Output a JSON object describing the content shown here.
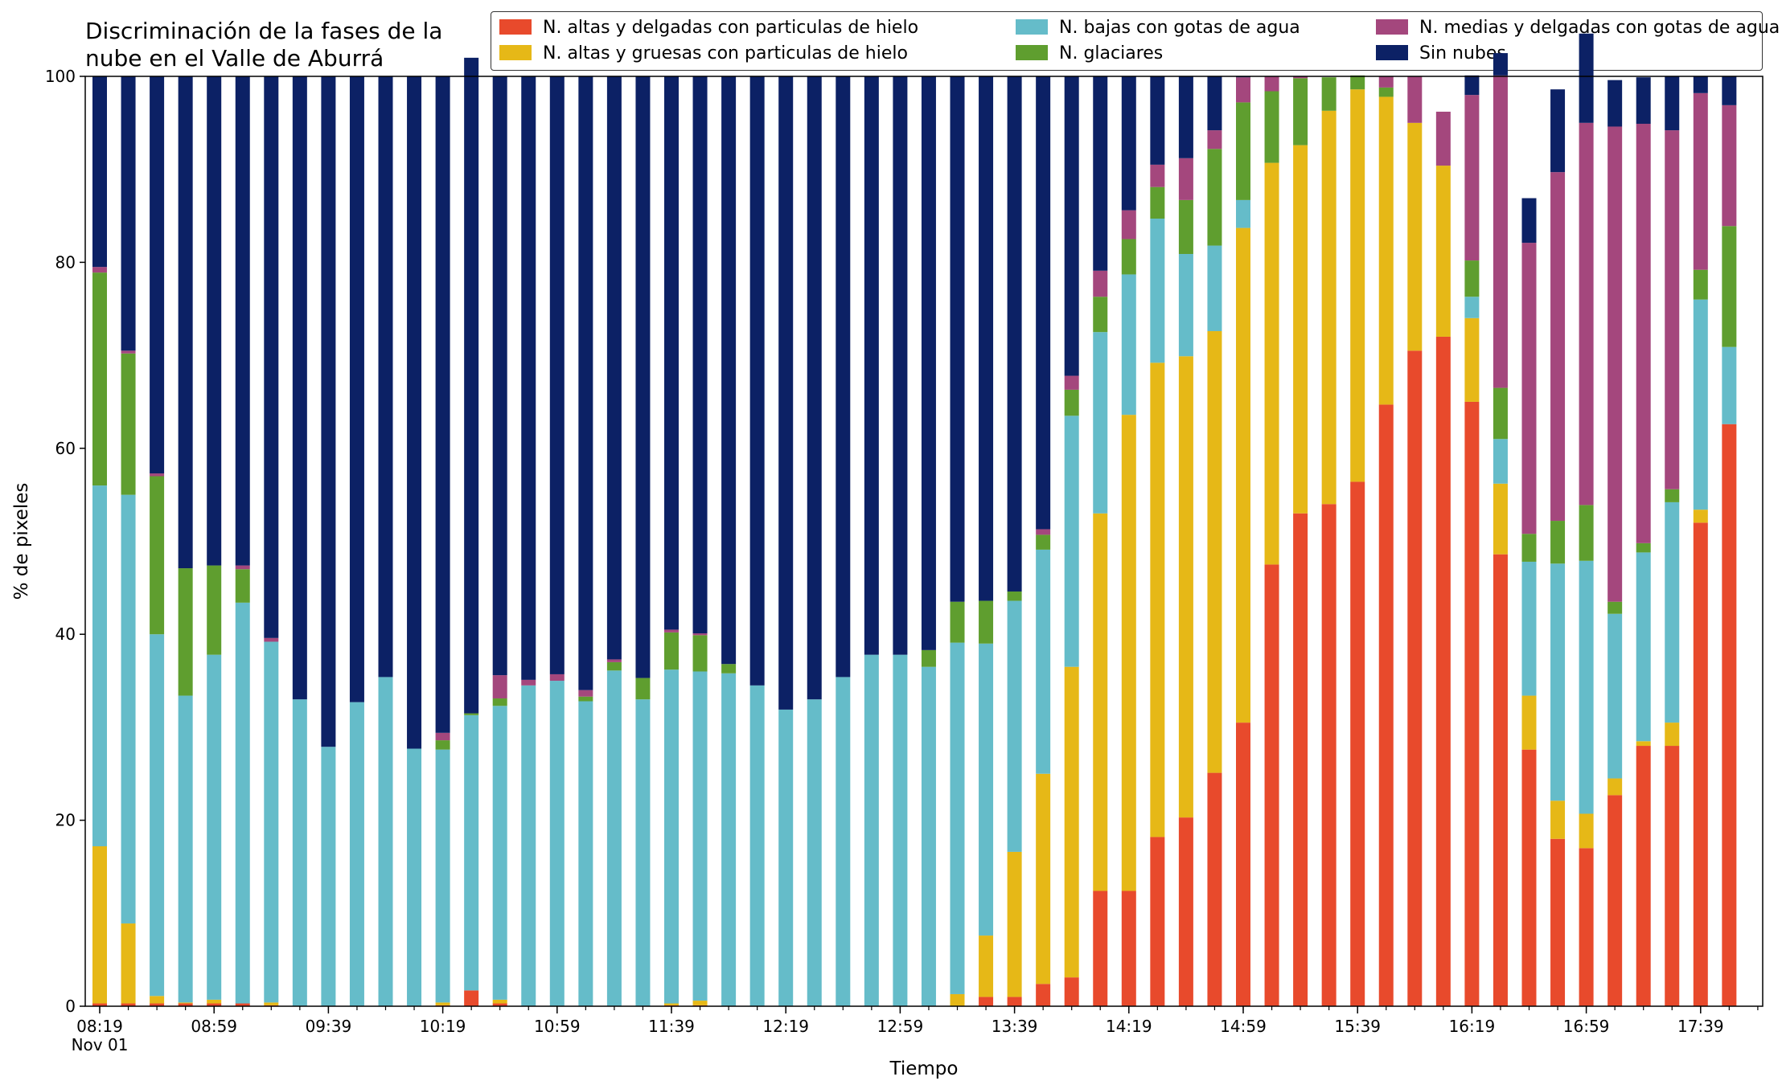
{
  "chart_data": {
    "type": "bar",
    "stacked": true,
    "title": "Discriminación de la fases de la\nnube en el Valle de Aburrá",
    "xlabel": "Tiempo",
    "ylabel": "% de pixeles",
    "ylim": [
      0,
      100
    ],
    "yticks": [
      0,
      20,
      40,
      60,
      80,
      100
    ],
    "xtick_labels": [
      "08:19",
      "08:59",
      "09:39",
      "10:19",
      "10:59",
      "11:39",
      "12:19",
      "12:59",
      "13:39",
      "14:19",
      "14:59",
      "15:39",
      "16:19",
      "16:59",
      "17:39"
    ],
    "xtick_sublabel": "Nov 01",
    "legend_position": "top-right",
    "categories": [
      "08:19",
      "08:29",
      "08:39",
      "08:49",
      "08:59",
      "09:09",
      "09:19",
      "09:29",
      "09:39",
      "09:49",
      "09:59",
      "10:09",
      "10:19",
      "10:29",
      "10:39",
      "10:49",
      "10:59",
      "11:09",
      "11:19",
      "11:29",
      "11:39",
      "11:49",
      "11:59",
      "12:09",
      "12:19",
      "12:29",
      "12:39",
      "12:49",
      "12:59",
      "13:09",
      "13:19",
      "13:29",
      "13:39",
      "13:49",
      "13:59",
      "14:09",
      "14:19",
      "14:29",
      "14:39",
      "14:49",
      "14:59",
      "15:09",
      "15:19",
      "15:29",
      "15:39",
      "15:49",
      "15:59",
      "16:09",
      "16:19",
      "16:29",
      "16:39",
      "16:49",
      "16:59",
      "17:09",
      "17:19",
      "17:29",
      "17:39",
      "17:49"
    ],
    "series": [
      {
        "name": "N. altas y delgadas con particulas de hielo",
        "color": "#e84a2c",
        "values": [
          0.3,
          0.3,
          0.3,
          0.3,
          0.3,
          0.3,
          0.1,
          0,
          0,
          0,
          0,
          0,
          0.1,
          1.7,
          0.3,
          0,
          0,
          0,
          0,
          0,
          0.1,
          0.1,
          0,
          0,
          0,
          0,
          0,
          0,
          0,
          0,
          0,
          1.0,
          1.0,
          2.4,
          3.1,
          12.4,
          12.4,
          18.2,
          20.3,
          25.1,
          30.5,
          47.5,
          53.0,
          54.0,
          56.4,
          64.7,
          70.5,
          72.0,
          65.0,
          48.6,
          27.6,
          18.0,
          17.0,
          22.7,
          28.0,
          28.0,
          52.0,
          62.6
        ]
      },
      {
        "name": "N. altas y gruesas con particulas de hielo",
        "color": "#e6b817",
        "values": [
          16.9,
          8.6,
          0.8,
          0.1,
          0.4,
          0,
          0.3,
          0,
          0,
          0,
          0,
          0,
          0.3,
          0,
          0.4,
          0,
          0,
          0,
          0,
          0,
          0.2,
          0.5,
          0,
          0,
          0,
          0,
          0,
          0,
          0,
          0,
          1.3,
          6.6,
          15.6,
          22.6,
          33.4,
          40.6,
          51.2,
          51.0,
          49.6,
          47.5,
          53.2,
          43.2,
          39.6,
          42.3,
          42.2,
          33.1,
          24.5,
          18.4,
          9.0,
          7.6,
          5.8,
          4.1,
          3.7,
          1.8,
          0.5,
          2.5,
          1.4,
          0
        ]
      },
      {
        "name": "N. bajas con gotas de agua",
        "color": "#65bcc9",
        "values": [
          38.8,
          46.1,
          38.9,
          33.0,
          37.1,
          43.1,
          38.8,
          33.0,
          27.9,
          32.7,
          35.4,
          27.7,
          27.2,
          29.6,
          31.6,
          34.5,
          35.0,
          32.8,
          36.1,
          33.0,
          35.9,
          35.4,
          35.8,
          34.5,
          31.9,
          33.0,
          35.4,
          37.8,
          37.8,
          36.5,
          37.8,
          31.4,
          27.0,
          24.1,
          27.0,
          19.5,
          15.1,
          15.5,
          11.0,
          9.2,
          3.0,
          0,
          0,
          0,
          0,
          0,
          0,
          0,
          2.3,
          4.8,
          14.4,
          25.5,
          27.2,
          17.7,
          20.3,
          23.7,
          22.6,
          8.3
        ]
      },
      {
        "name": "N. glaciares",
        "color": "#5f9e2f",
        "values": [
          22.9,
          15.2,
          17.0,
          13.7,
          9.6,
          3.6,
          0,
          0,
          0,
          0,
          0,
          0,
          1.0,
          0.2,
          0.8,
          0,
          0,
          0.5,
          0.9,
          2.3,
          4.0,
          3.9,
          1.0,
          0,
          0,
          0,
          0,
          0,
          0,
          1.8,
          4.4,
          4.6,
          1.0,
          1.6,
          2.8,
          3.8,
          3.8,
          3.4,
          5.8,
          10.4,
          10.5,
          7.7,
          7.2,
          3.6,
          1.5,
          1.0,
          0,
          0,
          3.9,
          5.5,
          3.0,
          4.6,
          6.0,
          1.3,
          1.0,
          1.4,
          3.2,
          13.0
        ]
      },
      {
        "name": "N. medias y delgadas con gotas de agua",
        "color": "#a4477d",
        "values": [
          0.6,
          0.3,
          0.3,
          0,
          0,
          0.4,
          0.4,
          0,
          0,
          0,
          0,
          0,
          0.8,
          0,
          2.5,
          0.6,
          0.7,
          0.7,
          0.3,
          0,
          0.3,
          0.2,
          0,
          0,
          0,
          0,
          0,
          0,
          0,
          0,
          0,
          0,
          0,
          0.6,
          1.5,
          2.8,
          3.1,
          2.4,
          4.5,
          2.0,
          2.7,
          1.6,
          0.2,
          0,
          0,
          1.2,
          5.0,
          5.8,
          17.8,
          33.6,
          31.3,
          37.5,
          41.1,
          51.1,
          45.1,
          38.6,
          19.0,
          13.0
        ]
      },
      {
        "name": "Sin nubes",
        "color": "#0c2165",
        "values": [
          20.5,
          29.5,
          42.7,
          52.9,
          52.6,
          52.6,
          60.4,
          67.0,
          72.1,
          67.3,
          64.6,
          72.3,
          70.6,
          70.5,
          64.4,
          64.9,
          64.3,
          66.0,
          62.7,
          64.7,
          59.5,
          59.9,
          63.2,
          65.5,
          68.1,
          67.0,
          64.6,
          62.2,
          62.2,
          61.7,
          56.5,
          56.4,
          55.4,
          48.7,
          32.2,
          20.9,
          14.4,
          9.5,
          8.8,
          5.8,
          0.1,
          0,
          0,
          0,
          0,
          0,
          0,
          0,
          2.1,
          2.4,
          4.8,
          8.9,
          9.6,
          5.0,
          5.0,
          5.8,
          1.8,
          3.1
        ]
      }
    ]
  }
}
